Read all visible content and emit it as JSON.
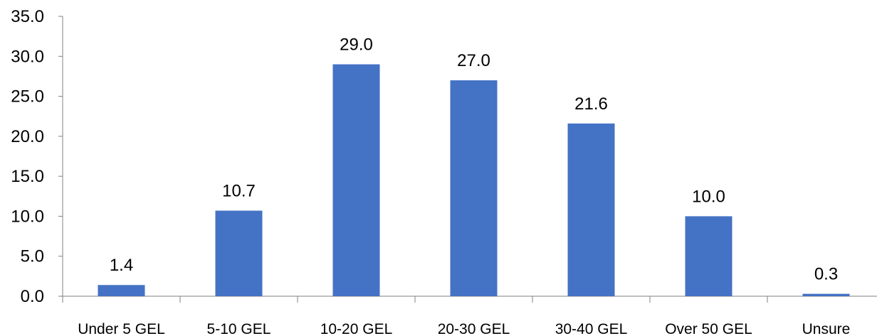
{
  "chart_data": {
    "type": "bar",
    "title": "",
    "xlabel": "",
    "ylabel": "",
    "categories": [
      "Under 5 GEL",
      "5-10 GEL",
      "10-20 GEL",
      "20-30 GEL",
      "30-40 GEL",
      "Over 50 GEL",
      "Unsure"
    ],
    "values": [
      1.4,
      10.7,
      29.0,
      27.0,
      21.6,
      10.0,
      0.3
    ],
    "value_labels": [
      "1.4",
      "10.7",
      "29.0",
      "27.0",
      "21.6",
      "10.0",
      "0.3"
    ],
    "ylim": [
      0,
      35
    ],
    "yticks": [
      "0.0",
      "5.0",
      "10.0",
      "15.0",
      "20.0",
      "25.0",
      "30.0",
      "35.0"
    ],
    "grid": false,
    "legend": "none",
    "bar_color": "#4472C4",
    "axis_color": "#808080"
  }
}
